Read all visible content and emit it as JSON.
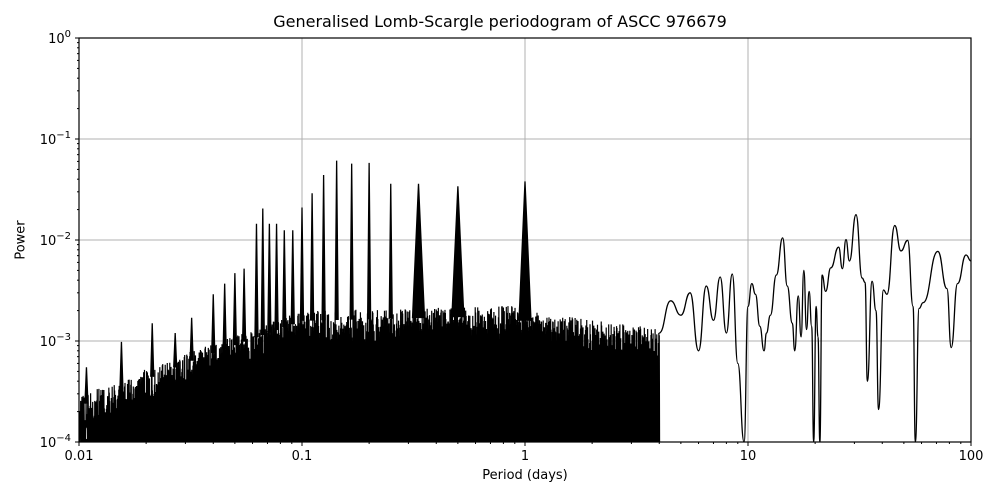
{
  "chart_data": {
    "type": "line",
    "title": "Generalised Lomb-Scargle periodogram of ASCC 976679",
    "xlabel": "Period (days)",
    "ylabel": "Power",
    "xscale": "log",
    "yscale": "log",
    "xlim": [
      0.01,
      100
    ],
    "ylim": [
      0.0001,
      1
    ],
    "grid": true,
    "legend": null,
    "x_ticks": [
      0.01,
      0.1,
      1,
      10,
      100
    ],
    "x_tick_labels": [
      "0.01",
      "0.1",
      "1",
      "10",
      "100"
    ],
    "y_ticks": [
      0.0001,
      0.001,
      0.01,
      0.1,
      1
    ],
    "y_tick_labels": [
      "10^-4",
      "10^-3",
      "10^-2",
      "10^-1",
      "10^0"
    ],
    "line_color": "#000000",
    "grid_color": "#b0b0b0",
    "noise_floor_description": "Dense noise band filling from 1e-4 up to ~3e-4 at 0.01 d, rising to ~2e-3 around 0.1-1 d, then becoming sparse resolved oscillations beyond ~4 d",
    "peaks": [
      {
        "period": 0.0108,
        "power": 0.00055
      },
      {
        "period": 0.0155,
        "power": 0.00098
      },
      {
        "period": 0.0213,
        "power": 0.0015
      },
      {
        "period": 0.027,
        "power": 0.0012
      },
      {
        "period": 0.032,
        "power": 0.0017
      },
      {
        "period": 0.04,
        "power": 0.0029
      },
      {
        "period": 0.045,
        "power": 0.0037
      },
      {
        "period": 0.05,
        "power": 0.0047
      },
      {
        "period": 0.055,
        "power": 0.0052
      },
      {
        "period": 0.0625,
        "power": 0.0145
      },
      {
        "period": 0.0667,
        "power": 0.0205
      },
      {
        "period": 0.0714,
        "power": 0.0145
      },
      {
        "period": 0.0769,
        "power": 0.0145
      },
      {
        "period": 0.0833,
        "power": 0.0125
      },
      {
        "period": 0.0909,
        "power": 0.0125
      },
      {
        "period": 0.1,
        "power": 0.021
      },
      {
        "period": 0.111,
        "power": 0.029
      },
      {
        "period": 0.125,
        "power": 0.044
      },
      {
        "period": 0.143,
        "power": 0.061
      },
      {
        "period": 0.167,
        "power": 0.057
      },
      {
        "period": 0.2,
        "power": 0.058
      },
      {
        "period": 0.25,
        "power": 0.036
      },
      {
        "period": 0.333,
        "power": 0.036
      },
      {
        "period": 0.5,
        "power": 0.034
      },
      {
        "period": 1.0,
        "power": 0.038
      },
      {
        "period": 14.3,
        "power": 0.0105
      },
      {
        "period": 25.5,
        "power": 0.0085
      },
      {
        "period": 27.5,
        "power": 0.0101
      },
      {
        "period": 30.5,
        "power": 0.0178
      },
      {
        "period": 45.5,
        "power": 0.0139
      },
      {
        "period": 52.0,
        "power": 0.0099
      },
      {
        "period": 71.0,
        "power": 0.0077
      },
      {
        "period": 95.0,
        "power": 0.0071
      }
    ],
    "long_period_curve": [
      [
        4.0,
        0.0012
      ],
      [
        4.5,
        0.0025
      ],
      [
        5.0,
        0.0018
      ],
      [
        5.5,
        0.003
      ],
      [
        6.0,
        0.0008
      ],
      [
        6.5,
        0.0035
      ],
      [
        7.0,
        0.0016
      ],
      [
        7.5,
        0.0043
      ],
      [
        8.0,
        0.0012
      ],
      [
        8.5,
        0.0046
      ],
      [
        9.0,
        0.0006
      ],
      [
        9.6,
        0.0001
      ],
      [
        10.0,
        0.0022
      ],
      [
        10.4,
        0.0037
      ],
      [
        10.8,
        0.0029
      ],
      [
        11.3,
        0.0014
      ],
      [
        11.8,
        0.0008
      ],
      [
        12.1,
        0.0012
      ],
      [
        12.6,
        0.0018
      ],
      [
        13.4,
        0.0045
      ],
      [
        14.3,
        0.0105
      ],
      [
        15.0,
        0.0035
      ],
      [
        15.8,
        0.0015
      ],
      [
        16.2,
        0.0008
      ],
      [
        16.8,
        0.0028
      ],
      [
        17.3,
        0.0011
      ],
      [
        17.8,
        0.005
      ],
      [
        18.3,
        0.0013
      ],
      [
        18.8,
        0.0031
      ],
      [
        19.3,
        0.0014
      ],
      [
        19.7,
        0.0001
      ],
      [
        20.2,
        0.0022
      ],
      [
        20.6,
        0.0011
      ],
      [
        21.0,
        0.0001
      ],
      [
        21.5,
        0.0045
      ],
      [
        22.3,
        0.0031
      ],
      [
        23.5,
        0.0053
      ],
      [
        25.5,
        0.0085
      ],
      [
        26.5,
        0.0052
      ],
      [
        27.5,
        0.0101
      ],
      [
        28.5,
        0.0062
      ],
      [
        30.5,
        0.0178
      ],
      [
        32.5,
        0.0042
      ],
      [
        33.5,
        0.0038
      ],
      [
        34.3,
        0.0004
      ],
      [
        36.0,
        0.0039
      ],
      [
        37.5,
        0.002
      ],
      [
        38.5,
        0.00021
      ],
      [
        40.5,
        0.0032
      ],
      [
        42.0,
        0.0029
      ],
      [
        45.5,
        0.0139
      ],
      [
        48.5,
        0.0078
      ],
      [
        52.0,
        0.0099
      ],
      [
        55.0,
        0.0022
      ],
      [
        56.3,
        0.0001
      ],
      [
        58.5,
        0.0021
      ],
      [
        61.0,
        0.0024
      ],
      [
        71.0,
        0.0077
      ],
      [
        78.0,
        0.0033
      ],
      [
        81.5,
        0.00086
      ],
      [
        87.0,
        0.0037
      ],
      [
        95.0,
        0.0071
      ],
      [
        100.0,
        0.0062
      ]
    ]
  }
}
